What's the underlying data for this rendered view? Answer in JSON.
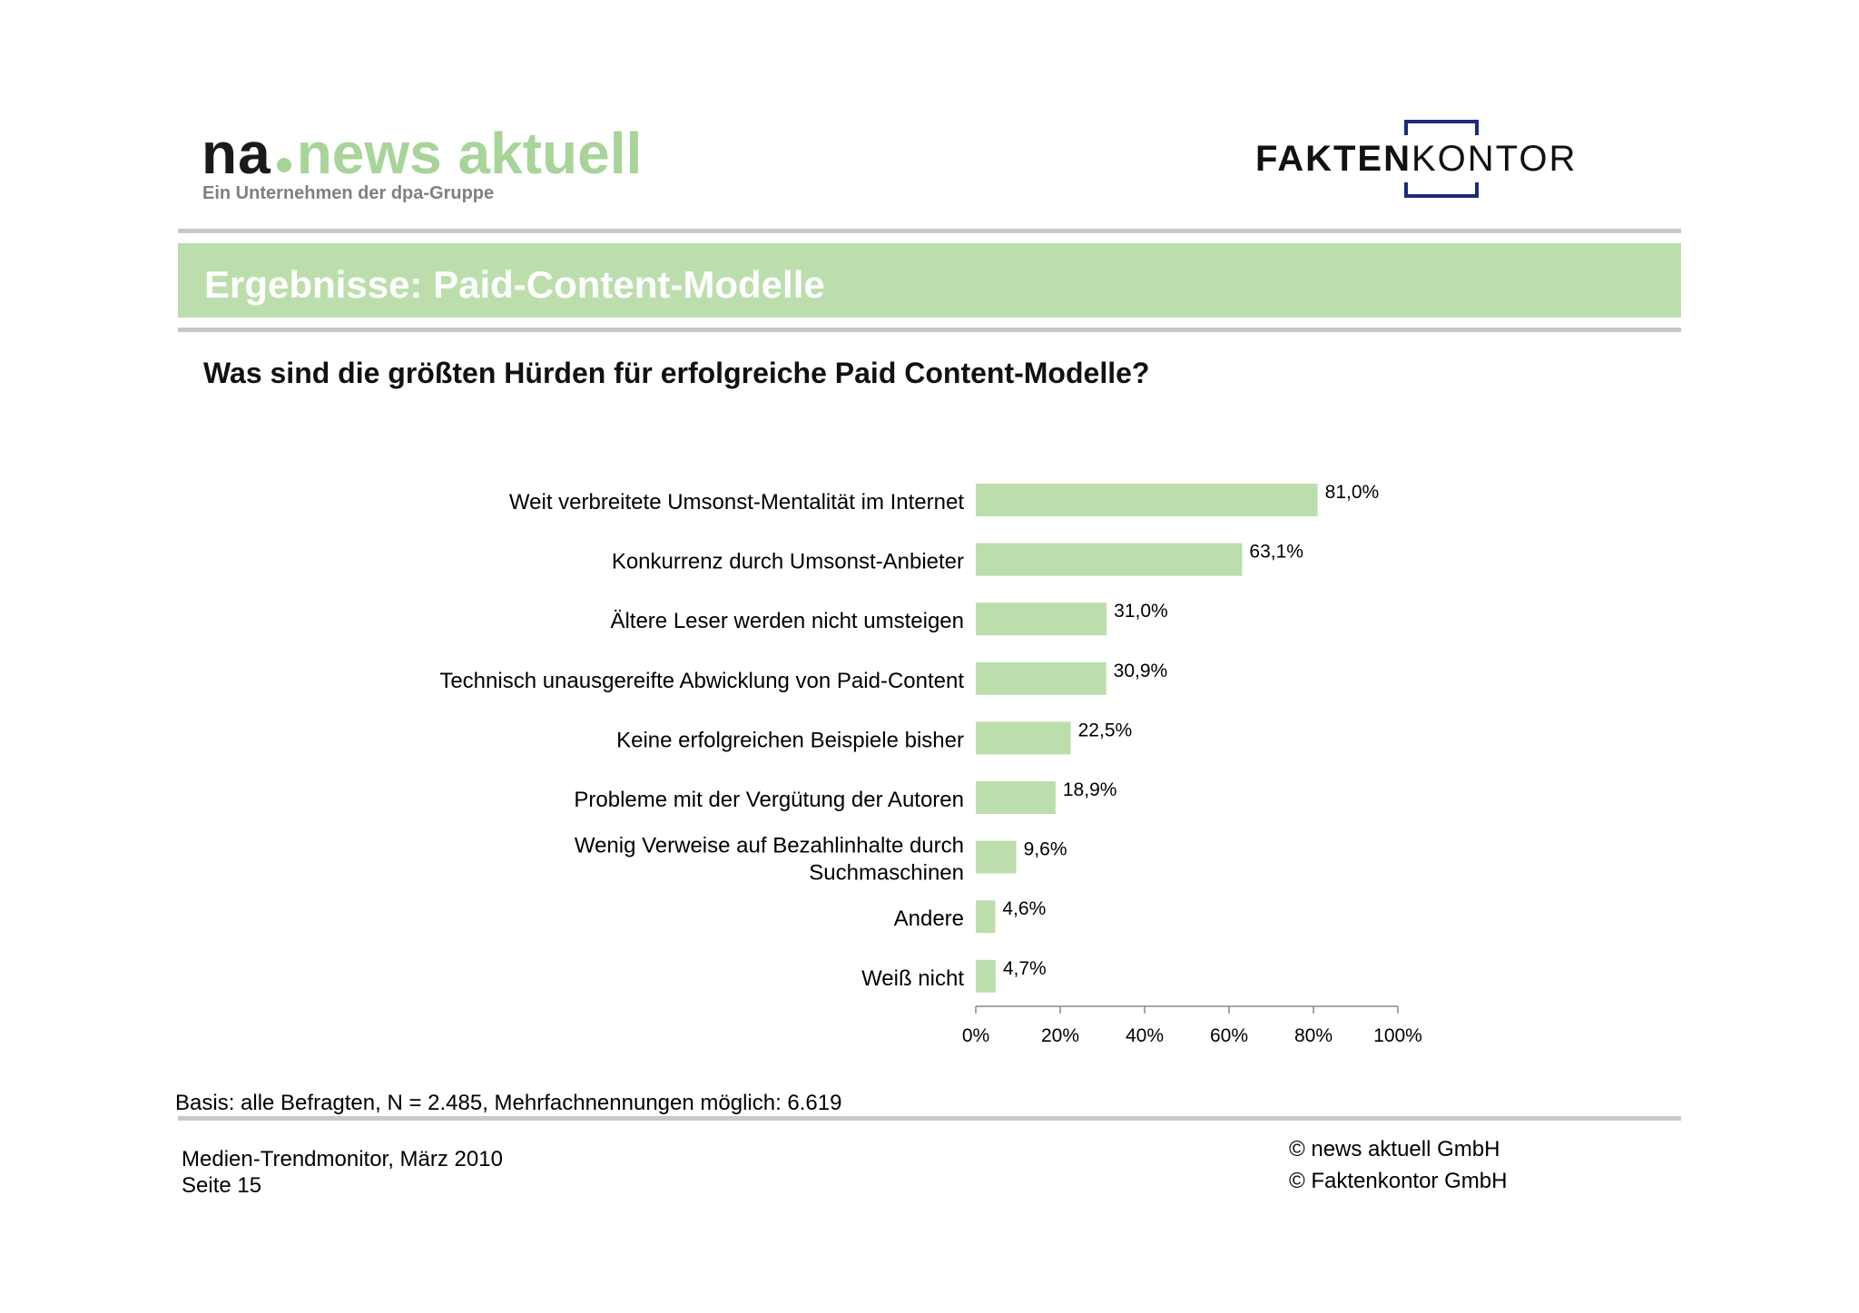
{
  "header": {
    "logo_left_prefix": "na",
    "logo_left_name": "news aktuell",
    "logo_left_sub": "Ein Unternehmen der dpa-Gruppe",
    "logo_right_bold": "FAKTEN",
    "logo_right_light": "KONTOR"
  },
  "banner": {
    "title": "Ergebnisse: Paid-Content-Modelle"
  },
  "question": "Was sind die größten Hürden für erfolgreiche Paid Content-Modelle?",
  "colors": {
    "bar": "#bcdead",
    "banner": "#bcdead",
    "rule": "#c8c8c8",
    "logo_accent": "#a8d49a",
    "logo_bracket": "#1e2a78"
  },
  "chart_data": {
    "type": "bar",
    "orientation": "horizontal",
    "categories": [
      [
        "Weit verbreitete Umsonst-Mentalität im Internet"
      ],
      [
        "Konkurrenz durch Umsonst-Anbieter"
      ],
      [
        "Ältere Leser werden nicht umsteigen"
      ],
      [
        "Technisch unausgereifte Abwicklung von Paid-Content"
      ],
      [
        "Keine erfolgreichen Beispiele bisher"
      ],
      [
        "Probleme mit der Vergütung der Autoren"
      ],
      [
        "Wenig Verweise auf Bezahlinhalte durch",
        "Suchmaschinen"
      ],
      [
        "Andere"
      ],
      [
        "Weiß nicht"
      ]
    ],
    "values": [
      81.0,
      63.1,
      31.0,
      30.9,
      22.5,
      18.9,
      9.6,
      4.6,
      4.7
    ],
    "value_labels": [
      "81,0%",
      "63,1%",
      "31,0%",
      "30,9%",
      "22,5%",
      "18,9%",
      "9,6%",
      "4,6%",
      "4,7%"
    ],
    "xlim": [
      0,
      100
    ],
    "x_ticks": [
      0,
      20,
      40,
      60,
      80,
      100
    ],
    "x_tick_labels": [
      "0%",
      "20%",
      "40%",
      "60%",
      "80%",
      "100%"
    ],
    "grid": false,
    "legend": "none"
  },
  "footer": {
    "basis": "Basis: alle Befragten, N = 2.485, Mehrfachnennungen möglich: 6.619",
    "left_line1": "Medien-Trendmonitor, März 2010",
    "left_line2": "Seite 15",
    "right_line1": "© news aktuell GmbH",
    "right_line2": "© Faktenkontor GmbH"
  }
}
